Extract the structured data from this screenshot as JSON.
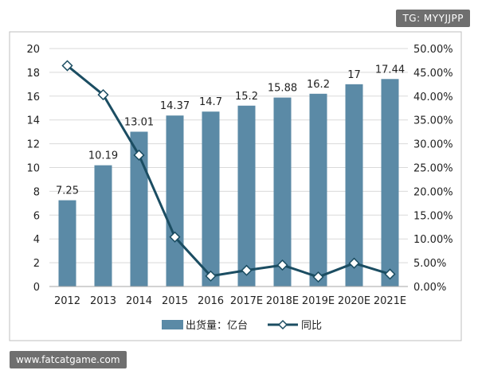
{
  "watermark_top": "TG: MYYJJPP",
  "watermark_bottom": "www.fatcatgame.com",
  "colors": {
    "bar": "#5b8aa6",
    "line": "#1b4d62",
    "marker_fill": "#ffffff",
    "frame": "#bfbfbf"
  },
  "chart_data": {
    "type": "bar",
    "title": "",
    "categories": [
      "2012",
      "2013",
      "2014",
      "2015",
      "2016",
      "2017E",
      "2018E",
      "2019E",
      "2020E",
      "2021E"
    ],
    "series": [
      {
        "name": "出货量：亿台",
        "type": "bar",
        "axis": "left",
        "values": [
          7.25,
          10.19,
          13.01,
          14.37,
          14.7,
          15.2,
          15.88,
          16.2,
          17,
          17.44
        ],
        "labels": [
          "7.25",
          "10.19",
          "13.01",
          "14.37",
          "14.7",
          "15.2",
          "15.88",
          "16.2",
          "17",
          "17.44"
        ]
      },
      {
        "name": "同比",
        "type": "line",
        "axis": "right",
        "values": [
          0.464,
          0.403,
          0.276,
          0.104,
          0.022,
          0.034,
          0.045,
          0.02,
          0.049,
          0.026
        ]
      }
    ],
    "ylim_left": [
      0,
      20
    ],
    "yticks_left": [
      "0",
      "2",
      "4",
      "6",
      "8",
      "10",
      "12",
      "14",
      "16",
      "18",
      "20"
    ],
    "ylim_right": [
      0,
      0.5
    ],
    "yticks_right": [
      "0.00%",
      "5.00%",
      "10.00%",
      "15.00%",
      "20.00%",
      "25.00%",
      "30.00%",
      "35.00%",
      "40.00%",
      "45.00%",
      "50.00%"
    ],
    "grid": true,
    "legend_position": "bottom"
  }
}
